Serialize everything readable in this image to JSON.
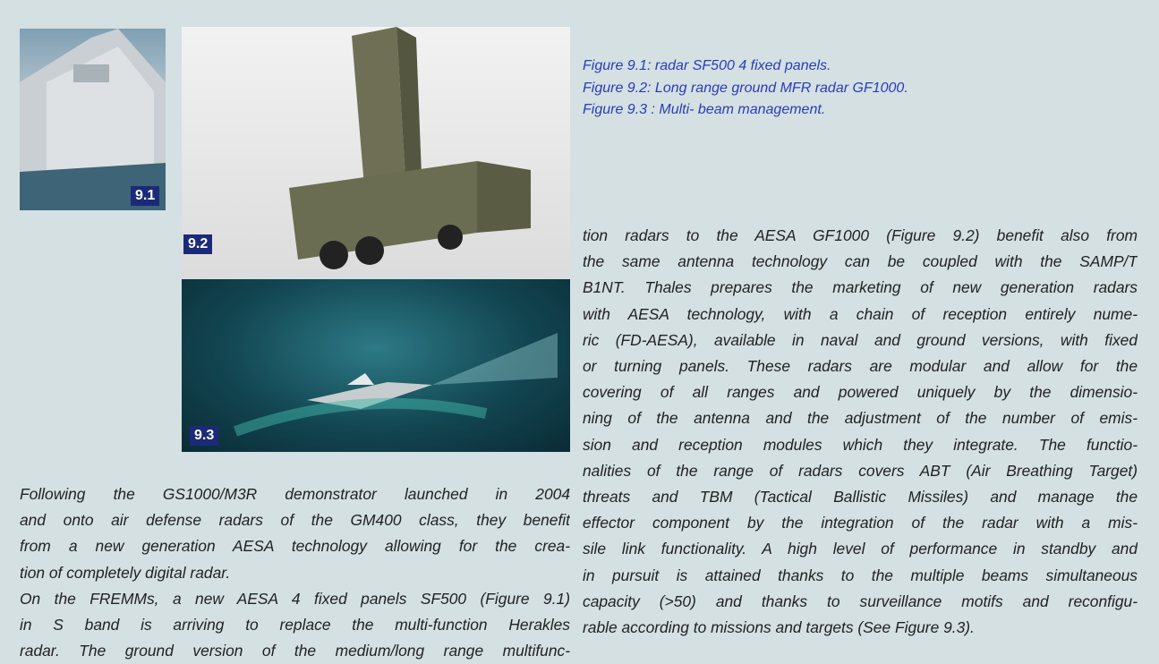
{
  "figures": [
    {
      "label": "9.1"
    },
    {
      "label": "9.2"
    },
    {
      "label": "9.3"
    }
  ],
  "captions": [
    "Figure 9.1: radar SF500 4 fixed panels.",
    "Figure 9.2: Long range ground MFR radar GF1000.",
    "Figure 9.3 : Multi- beam management."
  ],
  "left_text": {
    "paragraphs": [
      [
        "Following the GS1000/M3R demonstrator launched in 2004",
        "and onto air defense radars of the GM400 class, they benefit",
        "from a new generation AESA technology allowing for the crea-",
        "tion of completely digital radar."
      ],
      [
        "On the FREMMs, a new AESA 4 fixed panels SF500 (Figure 9.1)",
        "in S band is arriving to replace the multi-function Herakles",
        "radar. The ground version of the medium/long range multifunc-"
      ]
    ]
  },
  "right_text": {
    "lines": [
      "tion radars to the AESA GF1000 (Figure 9.2) benefit also from",
      "the same antenna technology can be coupled with the SAMP/T",
      "B1NT. Thales prepares the marketing of new generation radars",
      "with AESA technology, with a chain of reception entirely nume-",
      "ric (FD-AESA), available in naval and ground versions, with fixed",
      "or turning panels. These radars are modular and allow for the",
      "covering of all ranges and powered uniquely by the dimensio-",
      "ning of the antenna and the adjustment of the number of emis-",
      "sion and reception modules which they integrate. The functio-",
      "nalities of the range of radars covers ABT (Air Breathing Target)",
      "threats and TBM (Tactical Ballistic Missiles) and manage the",
      "effector component by the integration of the radar with a mis-",
      "sile link functionality. A high level of performance in standby and",
      "in pursuit is attained thanks to the multiple beams simultaneous",
      "capacity (>50) and thanks to surveillance motifs and reconfigu-",
      "rable according to missions and targets (See Figure 9.3)."
    ]
  }
}
